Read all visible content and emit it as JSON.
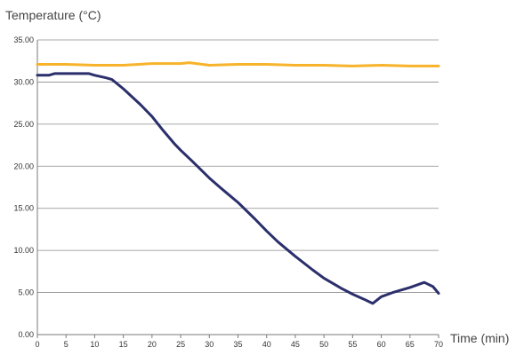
{
  "chart_data": {
    "type": "line",
    "title": "",
    "ylabel": "Temperature (°C)",
    "xlabel": "Time (min)",
    "xlim": [
      0,
      70
    ],
    "ylim": [
      0,
      35
    ],
    "x_ticks": [
      "0",
      "5",
      "10",
      "15",
      "20",
      "25",
      "30",
      "35",
      "40",
      "45",
      "50",
      "55",
      "60",
      "65",
      "70"
    ],
    "y_ticks": [
      "0.00",
      "5.00",
      "10.00",
      "15.00",
      "20.00",
      "25.00",
      "30.00",
      "35.00"
    ],
    "grid": "horizontal",
    "legend": "none",
    "series": [
      {
        "color": "#F7B32B",
        "x": [
          0,
          5,
          10,
          15,
          20,
          25,
          26.5,
          30,
          35,
          40,
          45,
          50,
          55,
          60,
          65,
          70
        ],
        "y": [
          32.1,
          32.1,
          32.0,
          32.0,
          32.2,
          32.2,
          32.3,
          32.0,
          32.1,
          32.1,
          32.0,
          32.0,
          31.9,
          32.0,
          31.9,
          31.9
        ]
      },
      {
        "color": "#2B2F6B",
        "x": [
          0,
          2,
          3,
          9,
          10,
          12,
          13,
          15,
          18,
          20,
          22,
          24,
          25,
          27,
          30,
          32,
          35,
          38,
          40,
          42,
          45,
          48,
          50,
          53,
          55,
          57,
          58.5,
          60,
          62,
          65,
          67.5,
          69,
          70
        ],
        "y": [
          30.8,
          30.8,
          31.0,
          31.0,
          30.8,
          30.5,
          30.3,
          29.2,
          27.3,
          25.9,
          24.2,
          22.6,
          21.9,
          20.6,
          18.6,
          17.4,
          15.7,
          13.7,
          12.3,
          11.0,
          9.3,
          7.7,
          6.7,
          5.5,
          4.8,
          4.2,
          3.7,
          4.5,
          5.0,
          5.6,
          6.2,
          5.7,
          4.9
        ]
      }
    ]
  }
}
